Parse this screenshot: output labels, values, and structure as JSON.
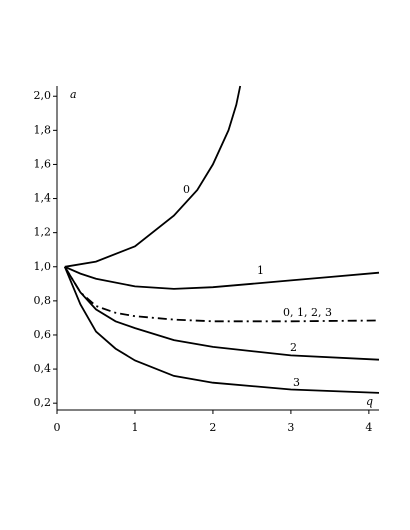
{
  "chart_data": {
    "type": "line",
    "x_label": "q",
    "y_label": "a",
    "xlim": [
      0,
      4.13
    ],
    "ylim": [
      0.16,
      2.06
    ],
    "xticks": [
      0,
      1,
      2,
      3,
      4
    ],
    "yticks": [
      {
        "value": 0.2,
        "label": "0,2"
      },
      {
        "value": 0.4,
        "label": "0,4"
      },
      {
        "value": 0.6,
        "label": "0,6"
      },
      {
        "value": 0.8,
        "label": "0,8"
      },
      {
        "value": 1.0,
        "label": "1,0"
      },
      {
        "value": 1.2,
        "label": "1,2"
      },
      {
        "value": 1.4,
        "label": "1,4"
      },
      {
        "value": 1.6,
        "label": "1,6"
      },
      {
        "value": 1.8,
        "label": "1,8"
      },
      {
        "value": 2.0,
        "label": "2,0"
      }
    ],
    "series": [
      {
        "name": "0",
        "color": "#000000",
        "dash": "solid",
        "x": [
          0.1,
          0.5,
          1,
          1.5,
          1.8,
          2.0,
          2.2,
          2.3,
          2.35
        ],
        "values": [
          1.0,
          1.03,
          1.12,
          1.3,
          1.45,
          1.6,
          1.8,
          1.95,
          2.06
        ]
      },
      {
        "name": "1",
        "color": "#000000",
        "dash": "solid",
        "x": [
          0.1,
          0.3,
          0.5,
          1,
          1.5,
          2,
          2.5,
          3,
          3.5,
          4.13
        ],
        "values": [
          1.0,
          0.96,
          0.93,
          0.885,
          0.87,
          0.88,
          0.9,
          0.92,
          0.94,
          0.965
        ]
      },
      {
        "name": "0, 1, 2, 3",
        "color": "#000000",
        "dash": "dashdot",
        "x": [
          0.1,
          0.3,
          0.5,
          0.75,
          1,
          1.5,
          2,
          3,
          4.13
        ],
        "values": [
          1.0,
          0.85,
          0.77,
          0.73,
          0.71,
          0.69,
          0.68,
          0.68,
          0.685
        ]
      },
      {
        "name": "2",
        "color": "#000000",
        "dash": "solid",
        "x": [
          0.1,
          0.3,
          0.5,
          0.75,
          1,
          1.5,
          2,
          3,
          4.13
        ],
        "values": [
          1.0,
          0.85,
          0.75,
          0.68,
          0.64,
          0.57,
          0.53,
          0.48,
          0.455
        ]
      },
      {
        "name": "3",
        "color": "#000000",
        "dash": "solid",
        "x": [
          0.1,
          0.3,
          0.5,
          0.75,
          1,
          1.5,
          2,
          3,
          4.13
        ],
        "values": [
          1.0,
          0.78,
          0.62,
          0.52,
          0.45,
          0.36,
          0.32,
          0.28,
          0.26
        ]
      }
    ]
  }
}
